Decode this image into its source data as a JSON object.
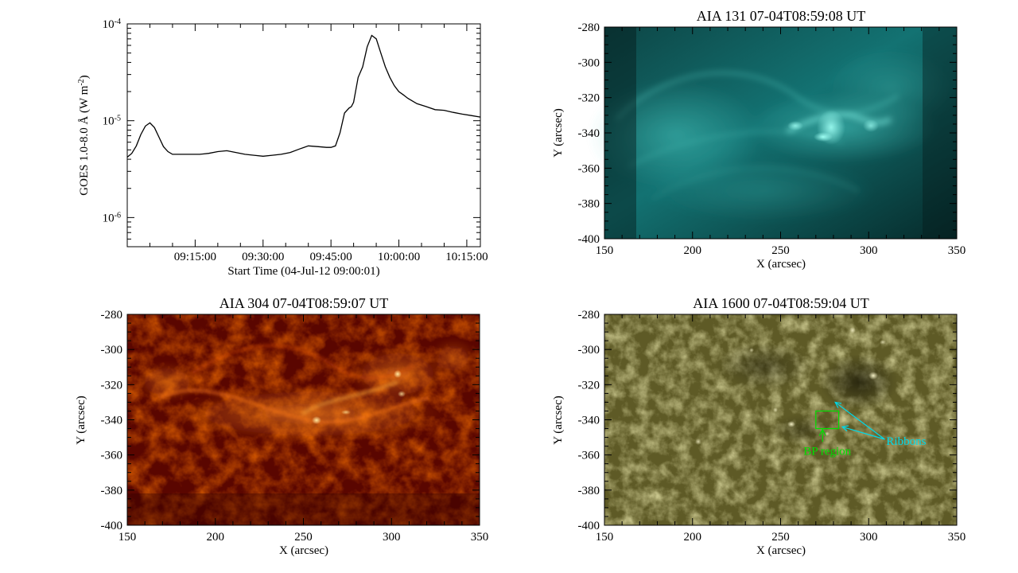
{
  "chart_data": [
    {
      "type": "line",
      "xlabel": "Start Time (04-Jul-12 09:00:01)",
      "ylabel_prefix": "GOES 1.0-8.0 Å (W m",
      "ylabel_sup": "-2",
      "ylabel_suffix": ")",
      "yscale": "log",
      "ylim": [
        5e-07,
        0.0001
      ],
      "xlim_min": [
        0,
        78
      ],
      "xticks": [
        "09:15:00",
        "09:30:00",
        "09:45:00",
        "10:00:00",
        "10:15:00"
      ],
      "xtick_values_min": [
        15,
        30,
        45,
        60,
        75
      ],
      "yticks": [
        {
          "base": "10",
          "exp": "-4",
          "value": 0.0001
        },
        {
          "base": "10",
          "exp": "-5",
          "value": 1e-05
        },
        {
          "base": "10",
          "exp": "-6",
          "value": 1e-06
        }
      ],
      "series": [
        {
          "color": "#000000",
          "x_min": [
            0,
            1,
            2,
            3,
            4,
            5,
            6,
            7,
            8,
            9,
            10,
            12,
            14,
            16,
            18,
            20,
            22,
            24,
            26,
            28,
            30,
            32,
            34,
            36,
            38,
            40,
            42,
            44,
            45,
            46,
            47,
            48,
            49,
            49.5,
            50,
            51,
            52,
            53,
            54,
            55,
            56,
            57,
            58,
            59,
            60,
            61,
            62,
            64,
            66,
            68,
            70,
            72,
            74,
            76,
            78
          ],
          "y": [
            4.2e-06,
            4.6e-06,
            5.5e-06,
            7.2e-06,
            8.8e-06,
            9.5e-06,
            8.5e-06,
            6.8e-06,
            5.4e-06,
            4.8e-06,
            4.5e-06,
            4.5e-06,
            4.5e-06,
            4.5e-06,
            4.6e-06,
            4.8e-06,
            4.9e-06,
            4.7e-06,
            4.5e-06,
            4.4e-06,
            4.3e-06,
            4.4e-06,
            4.5e-06,
            4.7e-06,
            5.1e-06,
            5.5e-06,
            5.4e-06,
            5.3e-06,
            5.3e-06,
            5.5e-06,
            7.5e-06,
            1.2e-05,
            1.35e-05,
            1.4e-05,
            1.55e-05,
            2.8e-05,
            3.6e-05,
            5.8e-05,
            7.6e-05,
            7e-05,
            5e-05,
            3.6e-05,
            2.8e-05,
            2.3e-05,
            2e-05,
            1.85e-05,
            1.7e-05,
            1.5e-05,
            1.4e-05,
            1.3e-05,
            1.28e-05,
            1.22e-05,
            1.17e-05,
            1.13e-05,
            1.09e-05
          ]
        }
      ]
    },
    {
      "type": "heatmap",
      "title": "AIA 131   07-04T08:59:08 UT",
      "xlabel": "X (arcsec)",
      "ylabel": "Y (arcsec)",
      "xlim": [
        150,
        350
      ],
      "ylim": [
        -400,
        -280
      ],
      "xticks": [
        "150",
        "200",
        "250",
        "300",
        "350"
      ],
      "yticks": [
        "-280",
        "-300",
        "-320",
        "-340",
        "-360",
        "-380",
        "-400"
      ],
      "colormap": {
        "dark": "#021a1a",
        "mid": "#0f7070",
        "bright": "#9ffff4"
      }
    },
    {
      "type": "heatmap",
      "title": "AIA 304   07-04T08:59:07 UT",
      "xlabel": "X (arcsec)",
      "ylabel": "Y (arcsec)",
      "xlim": [
        150,
        350
      ],
      "ylim": [
        -400,
        -280
      ],
      "xticks": [
        "150",
        "200",
        "250",
        "300",
        "350"
      ],
      "yticks": [
        "-280",
        "-300",
        "-320",
        "-340",
        "-360",
        "-380",
        "-400"
      ],
      "colormap": {
        "dark": "#3a0000",
        "mid": "#b02000",
        "bright": "#ffe080"
      }
    },
    {
      "type": "heatmap",
      "title": "AIA 1600   07-04T08:59:04 UT",
      "xlabel": "X (arcsec)",
      "ylabel": "Y (arcsec)",
      "xlim": [
        150,
        350
      ],
      "ylim": [
        -400,
        -280
      ],
      "xticks": [
        "150",
        "200",
        "250",
        "300",
        "350"
      ],
      "yticks": [
        "-280",
        "-300",
        "-320",
        "-340",
        "-360",
        "-380",
        "-400"
      ],
      "colormap": {
        "dark": "#2e2c12",
        "mid": "#7a7632",
        "bright": "#f4f0c0"
      },
      "annotations": [
        {
          "text": "BP region",
          "color": "#00e000",
          "box_x": [
            270,
            283
          ],
          "box_y": [
            -345,
            -335
          ],
          "label_at": [
            263,
            -358
          ]
        },
        {
          "text": "Ribbons",
          "color": "#00d8e8",
          "label_at": [
            310,
            -352
          ],
          "points_to": [
            [
              281,
              -330
            ],
            [
              285,
              -344
            ]
          ]
        }
      ]
    }
  ]
}
